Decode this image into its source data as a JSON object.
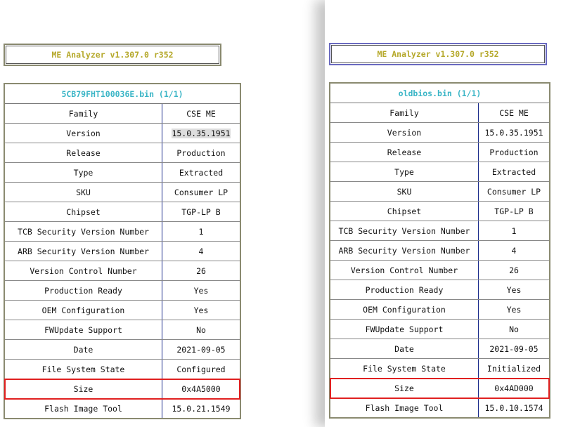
{
  "left": {
    "app_title": "ME Analyzer v1.307.0 r352",
    "file_title": "5CB79FHT100036E.bin (1/1)",
    "rows": [
      {
        "label": "Family",
        "value": "CSE ME"
      },
      {
        "label": "Version",
        "value": "15.0.35.1951"
      },
      {
        "label": "Release",
        "value": "Production"
      },
      {
        "label": "Type",
        "value": "Extracted"
      },
      {
        "label": "SKU",
        "value": "Consumer LP"
      },
      {
        "label": "Chipset",
        "value": "TGP-LP B"
      },
      {
        "label": "TCB Security Version Number",
        "value": "1"
      },
      {
        "label": "ARB Security Version Number",
        "value": "4"
      },
      {
        "label": "Version Control Number",
        "value": "26"
      },
      {
        "label": "Production Ready",
        "value": "Yes"
      },
      {
        "label": "OEM Configuration",
        "value": "Yes"
      },
      {
        "label": "FWUpdate Support",
        "value": "No"
      },
      {
        "label": "Date",
        "value": "2021-09-05"
      },
      {
        "label": "File System State",
        "value": "Configured"
      },
      {
        "label": "Size",
        "value": "0x4A5000"
      },
      {
        "label": "Flash Image Tool",
        "value": "15.0.21.1549"
      }
    ]
  },
  "right": {
    "app_title": "ME Analyzer v1.307.0 r352",
    "file_title": "oldbios.bin (1/1)",
    "rows": [
      {
        "label": "Family",
        "value": "CSE ME"
      },
      {
        "label": "Version",
        "value": "15.0.35.1951"
      },
      {
        "label": "Release",
        "value": "Production"
      },
      {
        "label": "Type",
        "value": "Extracted"
      },
      {
        "label": "SKU",
        "value": "Consumer LP"
      },
      {
        "label": "Chipset",
        "value": "TGP-LP B"
      },
      {
        "label": "TCB Security Version Number",
        "value": "1"
      },
      {
        "label": "ARB Security Version Number",
        "value": "4"
      },
      {
        "label": "Version Control Number",
        "value": "26"
      },
      {
        "label": "Production Ready",
        "value": "Yes"
      },
      {
        "label": "OEM Configuration",
        "value": "Yes"
      },
      {
        "label": "FWUpdate Support",
        "value": "No"
      },
      {
        "label": "Date",
        "value": "2021-09-05"
      },
      {
        "label": "File System State",
        "value": "Initialized"
      },
      {
        "label": "Size",
        "value": "0x4AD000"
      },
      {
        "label": "Flash Image Tool",
        "value": "15.0.10.1574"
      }
    ]
  },
  "colors": {
    "title": "#b5a82a",
    "file_title": "#3ab5c6",
    "highlight": "#e02020"
  }
}
